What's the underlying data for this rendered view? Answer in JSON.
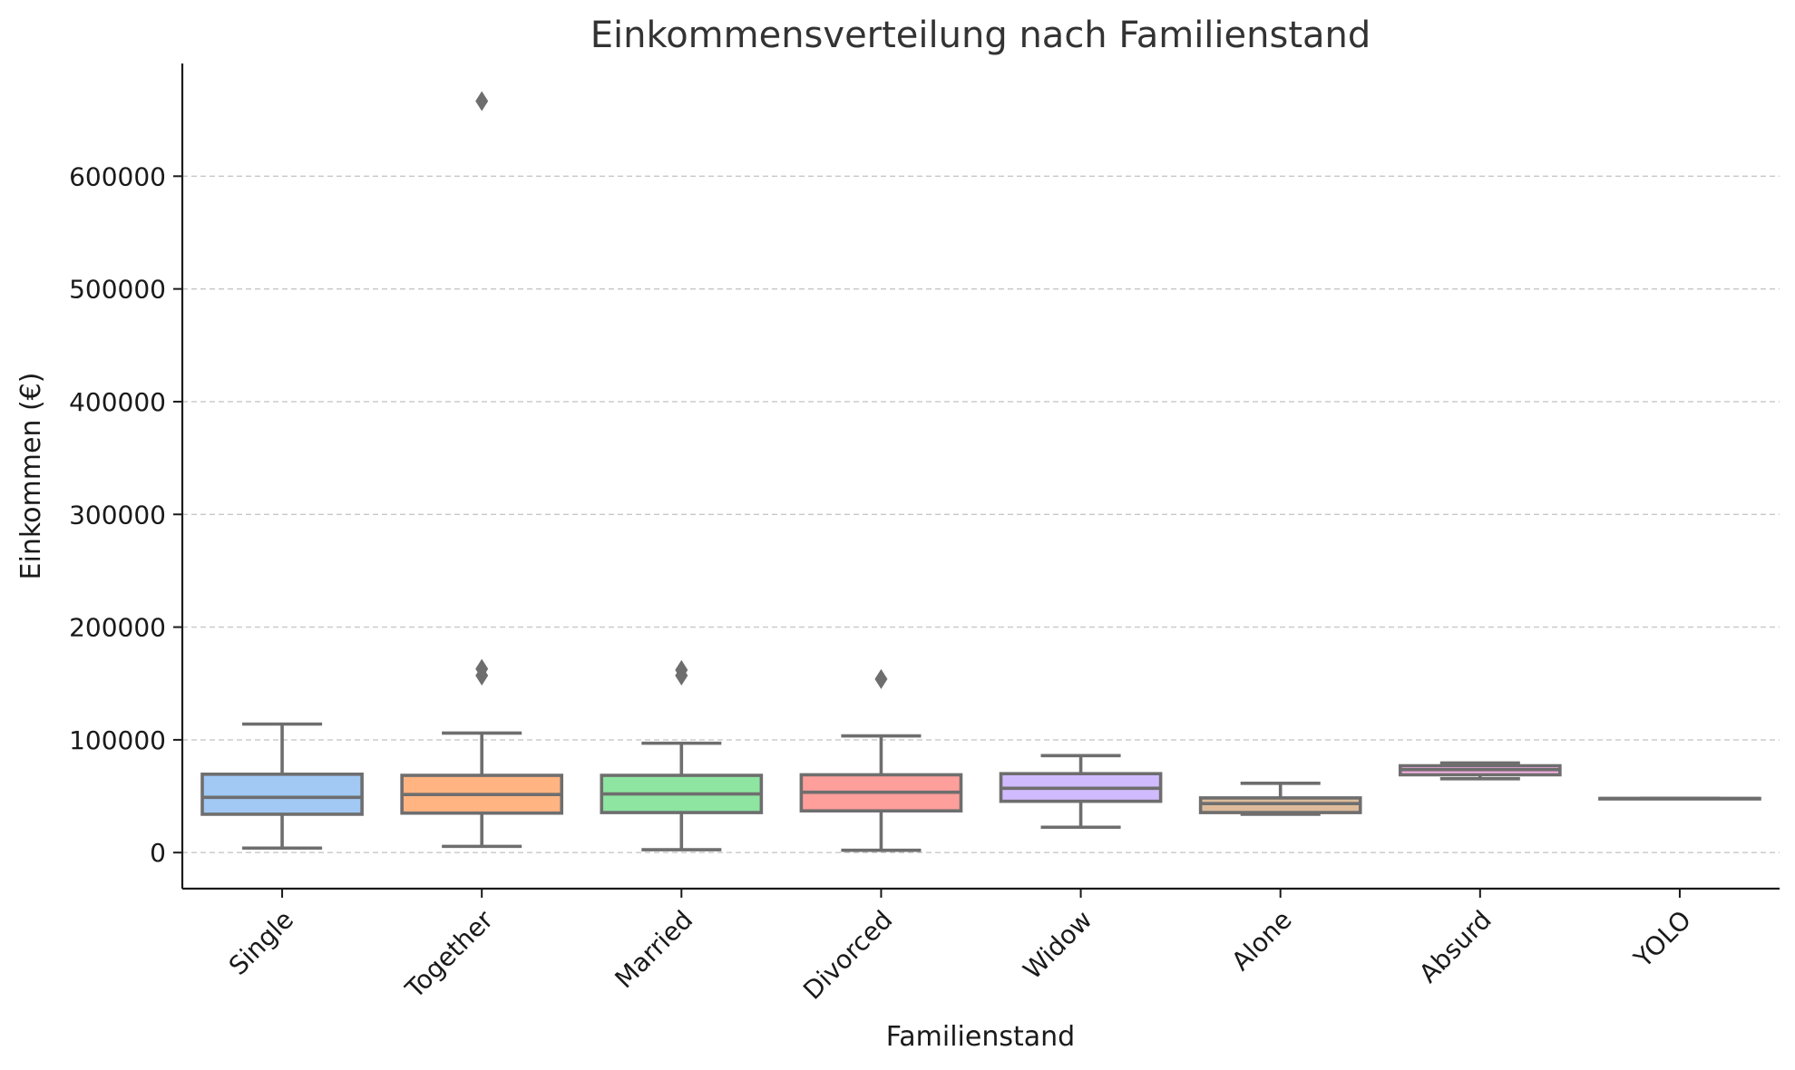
{
  "chart_data": {
    "type": "box",
    "title": "Einkommensverteilung nach Familienstand",
    "xlabel": "Familienstand",
    "ylabel": "Einkommen (€)",
    "ylim": [
      -32000,
      700000
    ],
    "yticks": [
      0,
      100000,
      200000,
      300000,
      400000,
      500000,
      600000
    ],
    "ytick_labels": [
      "0",
      "100000",
      "200000",
      "300000",
      "400000",
      "500000",
      "600000"
    ],
    "grid": "y",
    "categories": [
      "Single",
      "Together",
      "Married",
      "Divorced",
      "Widow",
      "Alone",
      "Absurd",
      "YOLO"
    ],
    "series": [
      {
        "category": "Single",
        "color": "#a1c9f4",
        "whisker_low": 4000,
        "q1": 34000,
        "median": 49000,
        "q3": 69500,
        "whisker_high": 114000,
        "outliers": []
      },
      {
        "category": "Together",
        "color": "#ffb482",
        "whisker_low": 5500,
        "q1": 35000,
        "median": 51500,
        "q3": 68500,
        "whisker_high": 106000,
        "outliers": [
          666666,
          163000,
          157000
        ]
      },
      {
        "category": "Married",
        "color": "#8de5a1",
        "whisker_low": 2500,
        "q1": 35500,
        "median": 52000,
        "q3": 68500,
        "whisker_high": 97000,
        "outliers": [
          162000,
          157000
        ]
      },
      {
        "category": "Divorced",
        "color": "#ff9f9b",
        "whisker_low": 2000,
        "q1": 37000,
        "median": 53500,
        "q3": 69000,
        "whisker_high": 103500,
        "outliers": [
          153900
        ]
      },
      {
        "category": "Widow",
        "color": "#d0bbff",
        "whisker_low": 22500,
        "q1": 45500,
        "median": 57000,
        "q3": 70000,
        "whisker_high": 86000,
        "outliers": []
      },
      {
        "category": "Alone",
        "color": "#debb9b",
        "whisker_low": 34000,
        "q1": 35500,
        "median": 43500,
        "q3": 48500,
        "whisker_high": 61500,
        "outliers": []
      },
      {
        "category": "Absurd",
        "color": "#fab0e4",
        "whisker_low": 65500,
        "q1": 69000,
        "median": 73500,
        "q3": 77000,
        "whisker_high": 79500,
        "outliers": []
      },
      {
        "category": "YOLO",
        "color": "#cfcfcf",
        "whisker_low": 48000,
        "q1": 48000,
        "median": 48000,
        "q3": 48000,
        "whisker_high": 48000,
        "outliers": []
      }
    ]
  }
}
